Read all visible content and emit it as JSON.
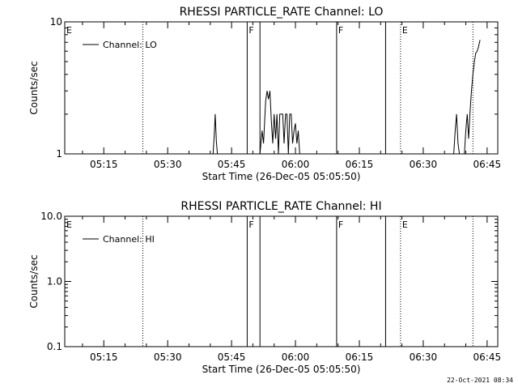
{
  "chart_data": [
    {
      "type": "line",
      "title": "RHESSI PARTICLE_RATE Channel: LO",
      "xlabel": "Start Time (26-Dec-05 05:05:50)",
      "ylabel": "Counts/sec",
      "yscale": "log",
      "ylim": [
        1,
        10
      ],
      "xlim": [
        "05:05:50",
        "06:47:30"
      ],
      "x_tick_labels": [
        "05:15",
        "05:30",
        "05:45",
        "06:00",
        "06:15",
        "06:30",
        "06:45"
      ],
      "y_tick_labels": [
        {
          "value": 1,
          "label": "1"
        },
        {
          "value": 10,
          "label": "10"
        }
      ],
      "legend": {
        "position": "top-left",
        "entries": [
          "Channel: LO"
        ]
      },
      "markers": [
        {
          "time": "05:05:50",
          "label": "E",
          "style": "solid"
        },
        {
          "time": "05:24:10",
          "label": "",
          "style": "dotted"
        },
        {
          "time": "05:48:40",
          "label": "F",
          "style": "solid"
        },
        {
          "time": "05:51:40",
          "label": "",
          "style": "solid"
        },
        {
          "time": "06:09:40",
          "label": "F",
          "style": "solid"
        },
        {
          "time": "06:21:10",
          "label": "",
          "style": "solid"
        },
        {
          "time": "06:24:40",
          "label": "E",
          "style": "dotted"
        },
        {
          "time": "06:41:40",
          "label": "",
          "style": "dotted"
        }
      ],
      "series": [
        {
          "points": [
            [
              "05:05:50",
              1
            ],
            [
              "05:40:40",
              1
            ],
            [
              "05:40:55",
              1.35
            ],
            [
              "05:41:10",
              2
            ],
            [
              "05:41:25",
              1.25
            ],
            [
              "05:41:40",
              1
            ],
            [
              "05:51:40",
              1
            ],
            [
              "05:52:10",
              1.5
            ],
            [
              "05:52:30",
              1.2
            ],
            [
              "05:53:00",
              2.5
            ],
            [
              "05:53:20",
              3
            ],
            [
              "05:53:40",
              2.6
            ],
            [
              "05:54:00",
              3
            ],
            [
              "05:54:20",
              1.8
            ],
            [
              "05:54:40",
              1.2
            ],
            [
              "05:55:00",
              2
            ],
            [
              "05:55:20",
              1.3
            ],
            [
              "05:55:40",
              2
            ],
            [
              "05:56:00",
              1
            ],
            [
              "05:56:20",
              2
            ],
            [
              "05:56:40",
              2
            ],
            [
              "05:57:00",
              2
            ],
            [
              "05:57:20",
              1.2
            ],
            [
              "05:57:40",
              2
            ],
            [
              "05:58:00",
              2
            ],
            [
              "05:58:20",
              1
            ],
            [
              "05:58:40",
              2
            ],
            [
              "05:59:00",
              2
            ],
            [
              "05:59:20",
              1.2
            ],
            [
              "05:59:40",
              1.5
            ],
            [
              "06:00:00",
              1.7
            ],
            [
              "06:00:20",
              1.2
            ],
            [
              "06:00:40",
              1.5
            ],
            [
              "06:01:00",
              1
            ],
            [
              "06:09:40",
              1
            ],
            [
              "06:37:10",
              1
            ],
            [
              "06:37:30",
              1.5
            ],
            [
              "06:37:50",
              2
            ],
            [
              "06:38:10",
              1.2
            ],
            [
              "06:38:30",
              1
            ],
            [
              "06:39:40",
              1
            ],
            [
              "06:40:00",
              1.5
            ],
            [
              "06:40:20",
              2
            ],
            [
              "06:40:40",
              1.3
            ],
            [
              "06:41:00",
              2.1
            ],
            [
              "06:41:20",
              3
            ],
            [
              "06:41:40",
              4
            ],
            [
              "06:42:00",
              5
            ],
            [
              "06:42:20",
              5.8
            ],
            [
              "06:42:40",
              6
            ],
            [
              "06:43:00",
              6.5
            ],
            [
              "06:43:20",
              7.3
            ]
          ]
        }
      ]
    },
    {
      "type": "line",
      "title": "RHESSI PARTICLE_RATE Channel: HI",
      "xlabel": "Start Time (26-Dec-05 05:05:50)",
      "ylabel": "Counts/sec",
      "yscale": "log",
      "ylim": [
        0.1,
        10
      ],
      "xlim": [
        "05:05:50",
        "06:47:30"
      ],
      "x_tick_labels": [
        "05:15",
        "05:30",
        "05:45",
        "06:00",
        "06:15",
        "06:30",
        "06:45"
      ],
      "y_tick_labels": [
        {
          "value": 0.1,
          "label": "0.1"
        },
        {
          "value": 1,
          "label": "1.0"
        },
        {
          "value": 10,
          "label": "10.0"
        }
      ],
      "legend": {
        "position": "top-left",
        "entries": [
          "Channel: HI"
        ]
      },
      "markers": [
        {
          "time": "05:05:50",
          "label": "E",
          "style": "solid"
        },
        {
          "time": "05:24:10",
          "label": "",
          "style": "dotted"
        },
        {
          "time": "05:48:40",
          "label": "F",
          "style": "solid"
        },
        {
          "time": "05:51:40",
          "label": "",
          "style": "solid"
        },
        {
          "time": "06:09:40",
          "label": "F",
          "style": "solid"
        },
        {
          "time": "06:21:10",
          "label": "",
          "style": "solid"
        },
        {
          "time": "06:24:40",
          "label": "E",
          "style": "dotted"
        },
        {
          "time": "06:41:40",
          "label": "",
          "style": "dotted"
        }
      ],
      "series": [
        {
          "points": []
        }
      ]
    }
  ],
  "footer": {
    "timestamp": "22-Oct-2021 08:34"
  }
}
